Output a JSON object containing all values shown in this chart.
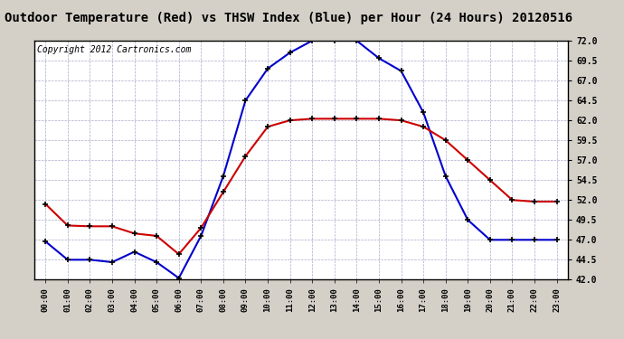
{
  "title": "Outdoor Temperature (Red) vs THSW Index (Blue) per Hour (24 Hours) 20120516",
  "copyright_text": "Copyright 2012 Cartronics.com",
  "hours": [
    "00:00",
    "01:00",
    "02:00",
    "03:00",
    "04:00",
    "05:00",
    "06:00",
    "07:00",
    "08:00",
    "09:00",
    "10:00",
    "11:00",
    "12:00",
    "13:00",
    "14:00",
    "15:00",
    "16:00",
    "17:00",
    "18:00",
    "19:00",
    "20:00",
    "21:00",
    "22:00",
    "23:00"
  ],
  "red_temp": [
    51.5,
    48.8,
    48.7,
    48.7,
    47.8,
    47.5,
    45.2,
    48.5,
    53.0,
    57.5,
    61.2,
    62.0,
    62.2,
    62.2,
    62.2,
    62.2,
    62.0,
    61.2,
    59.5,
    57.0,
    54.5,
    52.0,
    51.8,
    51.8
  ],
  "blue_thsw": [
    46.8,
    44.5,
    44.5,
    44.2,
    45.5,
    44.2,
    42.2,
    47.5,
    55.0,
    64.5,
    68.5,
    70.5,
    72.0,
    72.0,
    72.0,
    69.8,
    68.2,
    63.0,
    55.0,
    49.5,
    47.0,
    47.0,
    47.0,
    47.0
  ],
  "ylim": [
    42.0,
    72.0
  ],
  "yticks": [
    42.0,
    44.5,
    47.0,
    49.5,
    52.0,
    54.5,
    57.0,
    59.5,
    62.0,
    64.5,
    67.0,
    69.5,
    72.0
  ],
  "background_color": "#d4d0c8",
  "plot_bg_color": "#ffffff",
  "grid_color": "#aaaacc",
  "title_bg": "#d4d0c8",
  "title_fontsize": 10,
  "copyright_fontsize": 7,
  "red_color": "#cc0000",
  "blue_color": "#0000cc",
  "marker": "+",
  "marker_color": "#000000",
  "marker_size": 5,
  "marker_linewidth": 1.2,
  "line_width": 1.5
}
